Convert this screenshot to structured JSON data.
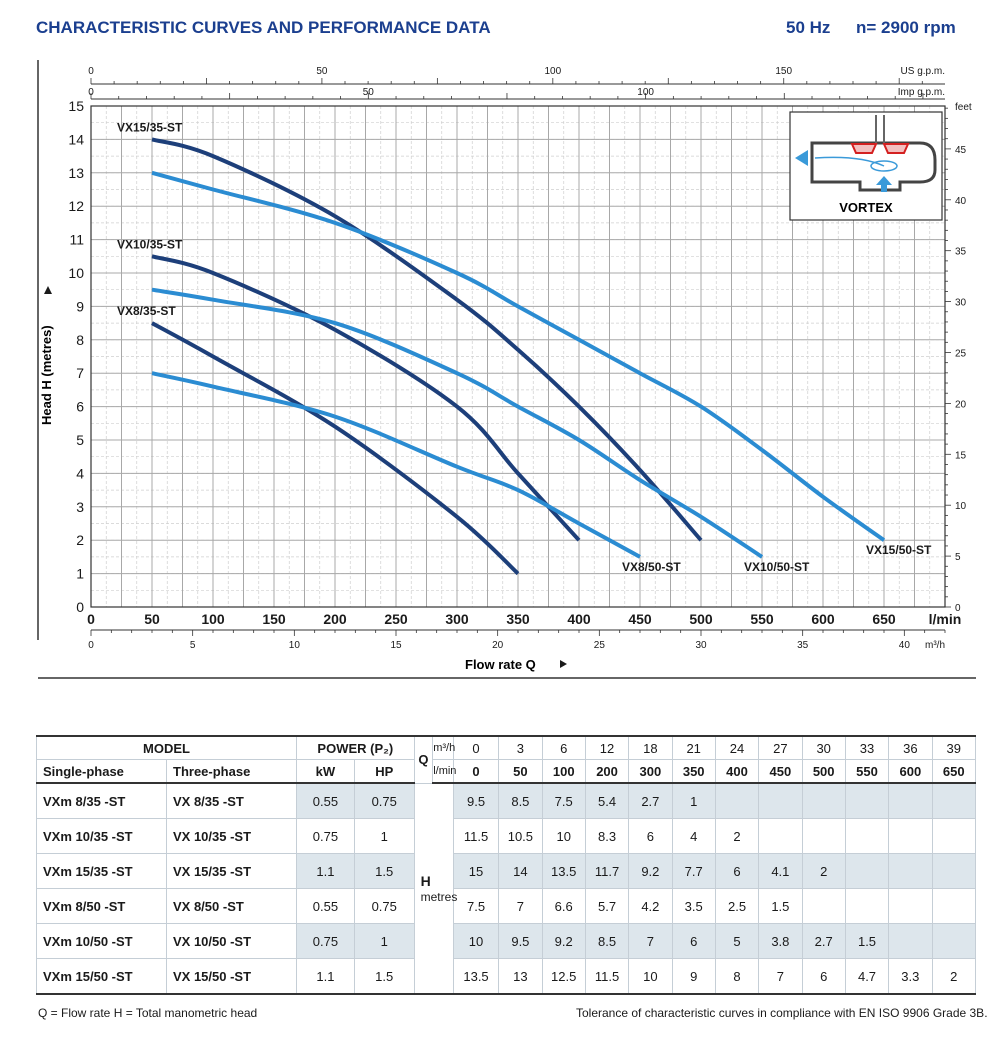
{
  "header": {
    "title": "CHARACTERISTIC CURVES AND PERFORMANCE DATA",
    "frequency": "50 Hz",
    "speed": "n= 2900 rpm"
  },
  "chart_data": {
    "type": "line",
    "title": "CHARACTERISTIC CURVES AND PERFORMANCE DATA",
    "xlabel": "Flow rate Q",
    "ylabel": "Head H (metres)",
    "x_unit_main": "l/min",
    "xlim": [
      0,
      700
    ],
    "ylim": [
      0,
      15
    ],
    "grid": true,
    "x_ticks": [
      0,
      50,
      100,
      150,
      200,
      250,
      300,
      350,
      400,
      450,
      500,
      550,
      600,
      650
    ],
    "y_ticks": [
      0,
      1,
      2,
      3,
      4,
      5,
      6,
      7,
      8,
      9,
      10,
      11,
      12,
      13,
      14,
      15
    ],
    "secondary_axes": {
      "us_gpm": {
        "label": "US g.p.m.",
        "ticks": [
          0,
          50,
          100,
          150
        ],
        "factor": 0.264172
      },
      "imp_gpm": {
        "label": "Imp g.p.m.",
        "ticks": [
          0,
          50,
          100
        ],
        "factor": 0.219969
      },
      "m3h": {
        "label": "m³/h",
        "ticks": [
          0,
          5,
          10,
          15,
          20,
          25,
          30,
          35,
          40
        ],
        "factor": 0.06
      },
      "feet": {
        "label": "feet",
        "ticks": [
          0,
          5,
          10,
          15,
          20,
          25,
          30,
          35,
          40,
          45
        ],
        "factor": 3.28084
      }
    },
    "series": [
      {
        "name": "VX8/35-ST",
        "style": "dark",
        "label_pos": "start",
        "x": [
          50,
          100,
          200,
          300,
          350
        ],
        "y": [
          8.5,
          7.5,
          5.4,
          2.7,
          1
        ]
      },
      {
        "name": "VX10/35-ST",
        "style": "dark",
        "label_pos": "start",
        "x": [
          50,
          100,
          200,
          300,
          350,
          400
        ],
        "y": [
          10.5,
          10,
          8.3,
          6,
          4,
          2
        ]
      },
      {
        "name": "VX15/35-ST",
        "style": "dark",
        "label_pos": "start",
        "x": [
          50,
          100,
          200,
          300,
          350,
          400,
          450,
          500
        ],
        "y": [
          14,
          13.5,
          11.7,
          9.2,
          7.7,
          6,
          4.1,
          2
        ]
      },
      {
        "name": "VX8/50-ST",
        "style": "light",
        "label_pos": "end",
        "x": [
          50,
          100,
          200,
          300,
          350,
          400,
          450
        ],
        "y": [
          7,
          6.6,
          5.7,
          4.2,
          3.5,
          2.5,
          1.5
        ]
      },
      {
        "name": "VX10/50-ST",
        "style": "light",
        "label_pos": "end",
        "x": [
          50,
          100,
          200,
          300,
          350,
          400,
          450,
          500,
          550
        ],
        "y": [
          9.5,
          9.2,
          8.5,
          7,
          6,
          5,
          3.8,
          2.7,
          1.5
        ]
      },
      {
        "name": "VX15/50-ST",
        "style": "light",
        "label_pos": "end",
        "x": [
          50,
          100,
          200,
          300,
          350,
          400,
          450,
          500,
          550,
          600,
          650
        ],
        "y": [
          13,
          12.5,
          11.5,
          10,
          9,
          8,
          7,
          6,
          4.7,
          3.3,
          2
        ]
      }
    ],
    "inset_label": "VORTEX",
    "colors": {
      "dark": "#1d3f7a",
      "light": "#2b8cd2",
      "grid": "#cfcfcf",
      "inset_red": "#d42020",
      "inset_arrow": "#3a9ad9"
    }
  },
  "table": {
    "model_header": "MODEL",
    "single_phase_header": "Single-phase",
    "three_phase_header": "Three-phase",
    "power_header": "POWER (P₂)",
    "kw_header": "kW",
    "hp_header": "HP",
    "q_symbol": "Q",
    "m3h_label": "m³/h",
    "lmin_label": "l/min",
    "h_symbol": "H",
    "h_unit": "metres",
    "m3h_values": [
      "0",
      "3",
      "6",
      "12",
      "18",
      "21",
      "24",
      "27",
      "30",
      "33",
      "36",
      "39"
    ],
    "lmin_values": [
      "0",
      "50",
      "100",
      "200",
      "300",
      "350",
      "400",
      "450",
      "500",
      "550",
      "600",
      "650"
    ],
    "rows": [
      {
        "single": "VXm 8/35   -ST",
        "three": "VX 8/35   -ST",
        "kw": "0.55",
        "hp": "0.75",
        "h": [
          "9.5",
          "8.5",
          "7.5",
          "5.4",
          "2.7",
          "1",
          "",
          "",
          "",
          "",
          "",
          ""
        ]
      },
      {
        "single": "VXm 10/35 -ST",
        "three": "VX 10/35 -ST",
        "kw": "0.75",
        "hp": "1",
        "h": [
          "11.5",
          "10.5",
          "10",
          "8.3",
          "6",
          "4",
          "2",
          "",
          "",
          "",
          "",
          ""
        ]
      },
      {
        "single": "VXm 15/35 -ST",
        "three": "VX 15/35 -ST",
        "kw": "1.1",
        "hp": "1.5",
        "h": [
          "15",
          "14",
          "13.5",
          "11.7",
          "9.2",
          "7.7",
          "6",
          "4.1",
          "2",
          "",
          "",
          ""
        ]
      },
      {
        "single": "VXm 8/50   -ST",
        "three": "VX 8/50   -ST",
        "kw": "0.55",
        "hp": "0.75",
        "h": [
          "7.5",
          "7",
          "6.6",
          "5.7",
          "4.2",
          "3.5",
          "2.5",
          "1.5",
          "",
          "",
          "",
          ""
        ]
      },
      {
        "single": "VXm 10/50 -ST",
        "three": "VX 10/50 -ST",
        "kw": "0.75",
        "hp": "1",
        "h": [
          "10",
          "9.5",
          "9.2",
          "8.5",
          "7",
          "6",
          "5",
          "3.8",
          "2.7",
          "1.5",
          "",
          ""
        ]
      },
      {
        "single": "VXm 15/50 -ST",
        "three": "VX 15/50 -ST",
        "kw": "1.1",
        "hp": "1.5",
        "h": [
          "13.5",
          "13",
          "12.5",
          "11.5",
          "10",
          "9",
          "8",
          "7",
          "6",
          "4.7",
          "3.3",
          "2"
        ]
      }
    ]
  },
  "footer": {
    "legend": "Q = Flow rate   H = Total manometric head",
    "tolerance": "Tolerance of characteristic curves in compliance with EN ISO 9906 Grade 3B."
  }
}
